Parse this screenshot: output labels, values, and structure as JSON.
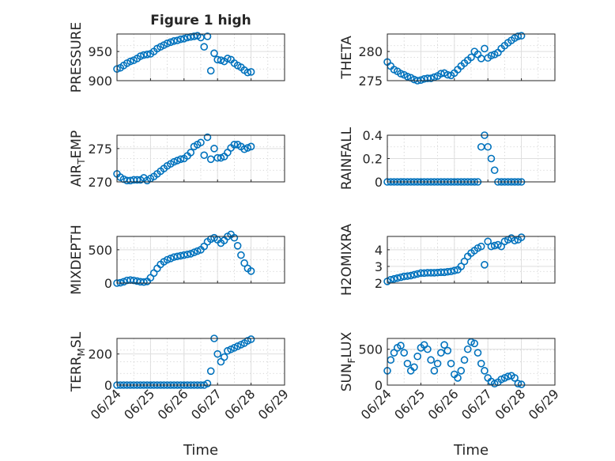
{
  "figure": {
    "title": "Figure 1 high",
    "marker_color": "#0072bd",
    "grid": true,
    "minor_grid": true,
    "marker": "open-circle"
  },
  "chart_data": [
    {
      "type": "scatter",
      "ylabel": "PRESSURE",
      "xlim": [
        "06/24",
        "06/29"
      ],
      "ylim": [
        900,
        980
      ],
      "yticks": [
        900,
        950
      ],
      "x_day": [
        0,
        0.1,
        0.2,
        0.3,
        0.4,
        0.5,
        0.6,
        0.7,
        0.8,
        0.9,
        1.0,
        1.1,
        1.2,
        1.3,
        1.4,
        1.5,
        1.6,
        1.7,
        1.8,
        1.9,
        2.0,
        2.1,
        2.2,
        2.3,
        2.4,
        2.5,
        2.6,
        2.7,
        2.8,
        2.9,
        3.0,
        3.1,
        3.2,
        3.3,
        3.4,
        3.5,
        3.6,
        3.7,
        3.8,
        3.9,
        4.0
      ],
      "y": [
        920,
        922,
        926,
        930,
        933,
        935,
        938,
        942,
        944,
        945,
        946,
        950,
        955,
        958,
        961,
        964,
        966,
        968,
        969,
        971,
        972,
        974,
        975,
        976,
        977,
        974,
        958,
        976,
        917,
        947,
        936,
        935,
        933,
        938,
        936,
        930,
        926,
        923,
        918,
        914,
        915
      ]
    },
    {
      "type": "scatter",
      "ylabel": "THETA",
      "ylim": [
        275,
        283
      ],
      "yticks": [
        275,
        280
      ],
      "x_day": [
        0,
        0.1,
        0.2,
        0.3,
        0.4,
        0.5,
        0.6,
        0.7,
        0.8,
        0.9,
        1.0,
        1.1,
        1.2,
        1.3,
        1.4,
        1.5,
        1.6,
        1.7,
        1.8,
        1.9,
        2.0,
        2.1,
        2.2,
        2.3,
        2.4,
        2.5,
        2.6,
        2.7,
        2.8,
        2.9,
        3.0,
        3.1,
        3.2,
        3.3,
        3.4,
        3.5,
        3.6,
        3.7,
        3.8,
        3.9,
        4.0
      ],
      "y": [
        278.2,
        277.5,
        276.9,
        276.6,
        276.2,
        276.0,
        275.7,
        275.5,
        275.2,
        275.0,
        275.1,
        275.3,
        275.4,
        275.4,
        275.6,
        275.8,
        276.2,
        276.3,
        276.0,
        275.9,
        276.3,
        276.9,
        277.5,
        278.0,
        278.5,
        279.0,
        280.0,
        279.5,
        278.8,
        280.5,
        278.9,
        279.3,
        279.5,
        279.8,
        280.5,
        281.0,
        281.5,
        281.9,
        282.3,
        282.6,
        282.7
      ]
    },
    {
      "type": "scatter",
      "ylabel": "AIR",
      "ylabel_sub": "T",
      "ylabel_rest": "EMP",
      "ylim": [
        270,
        277
      ],
      "yticks": [
        270,
        275
      ],
      "x_day": [
        0,
        0.1,
        0.2,
        0.3,
        0.4,
        0.5,
        0.6,
        0.7,
        0.8,
        0.9,
        1.0,
        1.1,
        1.2,
        1.3,
        1.4,
        1.5,
        1.6,
        1.7,
        1.8,
        1.9,
        2.0,
        2.1,
        2.2,
        2.3,
        2.4,
        2.5,
        2.6,
        2.7,
        2.8,
        2.9,
        3.0,
        3.1,
        3.2,
        3.3,
        3.4,
        3.5,
        3.6,
        3.7,
        3.8,
        3.9,
        4.0
      ],
      "y": [
        271.2,
        270.7,
        270.4,
        270.2,
        270.2,
        270.3,
        270.3,
        270.3,
        270.6,
        270.2,
        270.5,
        270.8,
        271.2,
        271.6,
        272.0,
        272.4,
        272.7,
        273.0,
        273.2,
        273.4,
        273.5,
        273.9,
        274.4,
        275.3,
        275.6,
        275.9,
        274.0,
        276.7,
        273.4,
        275.0,
        273.6,
        273.6,
        273.8,
        274.4,
        275.1,
        275.6,
        275.6,
        275.3,
        274.9,
        275.1,
        275.3
      ]
    },
    {
      "type": "scatter",
      "ylabel": "RAINFALL",
      "ylim": [
        0,
        0.4
      ],
      "yticks": [
        0,
        0.2,
        0.4
      ],
      "x_day": [
        0,
        0.1,
        0.2,
        0.3,
        0.4,
        0.5,
        0.6,
        0.7,
        0.8,
        0.9,
        1.0,
        1.1,
        1.2,
        1.3,
        1.4,
        1.5,
        1.6,
        1.7,
        1.8,
        1.9,
        2.0,
        2.1,
        2.2,
        2.3,
        2.4,
        2.5,
        2.6,
        2.7,
        2.8,
        2.9,
        3.0,
        3.1,
        3.2,
        3.3,
        3.4,
        3.5,
        3.6,
        3.7,
        3.8,
        3.9,
        4.0
      ],
      "y": [
        0,
        0,
        0,
        0,
        0,
        0,
        0,
        0,
        0,
        0,
        0,
        0,
        0,
        0,
        0,
        0,
        0,
        0,
        0,
        0,
        0,
        0,
        0,
        0,
        0,
        0,
        0,
        0,
        0.3,
        0.4,
        0.3,
        0.2,
        0.1,
        0,
        0,
        0,
        0,
        0,
        0,
        0,
        0
      ]
    },
    {
      "type": "scatter",
      "ylabel": "MIXDEPTH",
      "ylim": [
        0,
        700
      ],
      "yticks": [
        0,
        500
      ],
      "x_day": [
        0,
        0.1,
        0.2,
        0.3,
        0.4,
        0.5,
        0.6,
        0.7,
        0.8,
        0.9,
        1.0,
        1.1,
        1.2,
        1.3,
        1.4,
        1.5,
        1.6,
        1.7,
        1.8,
        1.9,
        2.0,
        2.1,
        2.2,
        2.3,
        2.4,
        2.5,
        2.6,
        2.7,
        2.8,
        2.9,
        3.0,
        3.1,
        3.2,
        3.3,
        3.4,
        3.5,
        3.6,
        3.7,
        3.8,
        3.9,
        4.0
      ],
      "y": [
        0,
        5,
        20,
        40,
        45,
        40,
        30,
        20,
        15,
        25,
        80,
        150,
        220,
        280,
        320,
        350,
        370,
        390,
        400,
        410,
        420,
        430,
        440,
        460,
        480,
        500,
        550,
        620,
        660,
        680,
        650,
        600,
        640,
        700,
        730,
        680,
        560,
        420,
        300,
        220,
        180
      ]
    },
    {
      "type": "scatter",
      "ylabel": "H2OMIXRA",
      "ylim": [
        2,
        4.8
      ],
      "yticks": [
        2,
        3,
        4
      ],
      "x_day": [
        0,
        0.1,
        0.2,
        0.3,
        0.4,
        0.5,
        0.6,
        0.7,
        0.8,
        0.9,
        1.0,
        1.1,
        1.2,
        1.3,
        1.4,
        1.5,
        1.6,
        1.7,
        1.8,
        1.9,
        2.0,
        2.1,
        2.2,
        2.3,
        2.4,
        2.5,
        2.6,
        2.7,
        2.8,
        2.9,
        3.0,
        3.1,
        3.2,
        3.3,
        3.4,
        3.5,
        3.6,
        3.7,
        3.8,
        3.9,
        4.0
      ],
      "y": [
        2.1,
        2.2,
        2.25,
        2.3,
        2.35,
        2.4,
        2.42,
        2.45,
        2.5,
        2.55,
        2.6,
        2.6,
        2.62,
        2.62,
        2.62,
        2.63,
        2.65,
        2.65,
        2.68,
        2.7,
        2.75,
        2.8,
        3.0,
        3.3,
        3.6,
        3.8,
        3.95,
        4.1,
        4.2,
        3.1,
        4.5,
        4.2,
        4.25,
        4.3,
        4.2,
        4.5,
        4.6,
        4.7,
        4.55,
        4.6,
        4.75
      ]
    },
    {
      "type": "scatter",
      "ylabel": "TERR",
      "ylabel_sub": "M",
      "ylabel_rest": "SL",
      "ylim": [
        0,
        300
      ],
      "yticks": [
        0,
        200
      ],
      "x_day": [
        0,
        0.1,
        0.2,
        0.3,
        0.4,
        0.5,
        0.6,
        0.7,
        0.8,
        0.9,
        1.0,
        1.1,
        1.2,
        1.3,
        1.4,
        1.5,
        1.6,
        1.7,
        1.8,
        1.9,
        2.0,
        2.1,
        2.2,
        2.3,
        2.4,
        2.5,
        2.6,
        2.7,
        2.8,
        2.9,
        3.0,
        3.1,
        3.2,
        3.3,
        3.4,
        3.5,
        3.6,
        3.7,
        3.8,
        3.9,
        4.0
      ],
      "y": [
        0,
        0,
        0,
        0,
        0,
        0,
        0,
        0,
        0,
        0,
        0,
        0,
        0,
        0,
        0,
        0,
        0,
        0,
        0,
        0,
        0,
        0,
        0,
        0,
        0,
        0,
        0,
        10,
        90,
        300,
        200,
        150,
        180,
        220,
        230,
        240,
        250,
        260,
        270,
        285,
        295
      ]
    },
    {
      "type": "scatter",
      "ylabel": "SUN",
      "ylabel_sub": "F",
      "ylabel_rest": "LUX",
      "ylim": [
        0,
        650
      ],
      "yticks": [
        0,
        500
      ],
      "x_day": [
        0,
        0.1,
        0.2,
        0.3,
        0.4,
        0.5,
        0.6,
        0.7,
        0.8,
        0.9,
        1.0,
        1.1,
        1.2,
        1.3,
        1.4,
        1.5,
        1.6,
        1.7,
        1.8,
        1.9,
        2.0,
        2.1,
        2.2,
        2.3,
        2.4,
        2.5,
        2.6,
        2.7,
        2.8,
        2.9,
        3.0,
        3.1,
        3.2,
        3.3,
        3.4,
        3.5,
        3.6,
        3.7,
        3.8,
        3.9,
        4.0
      ],
      "y": [
        200,
        350,
        450,
        520,
        550,
        450,
        300,
        200,
        250,
        400,
        520,
        560,
        500,
        350,
        200,
        300,
        450,
        560,
        480,
        300,
        150,
        100,
        200,
        350,
        500,
        600,
        580,
        450,
        300,
        200,
        100,
        50,
        20,
        40,
        80,
        100,
        120,
        130,
        100,
        20,
        10
      ]
    }
  ],
  "xaxis": {
    "ticks": [
      "06/24",
      "06/25",
      "06/26",
      "06/27",
      "06/28",
      "06/29"
    ],
    "label": "Time"
  }
}
